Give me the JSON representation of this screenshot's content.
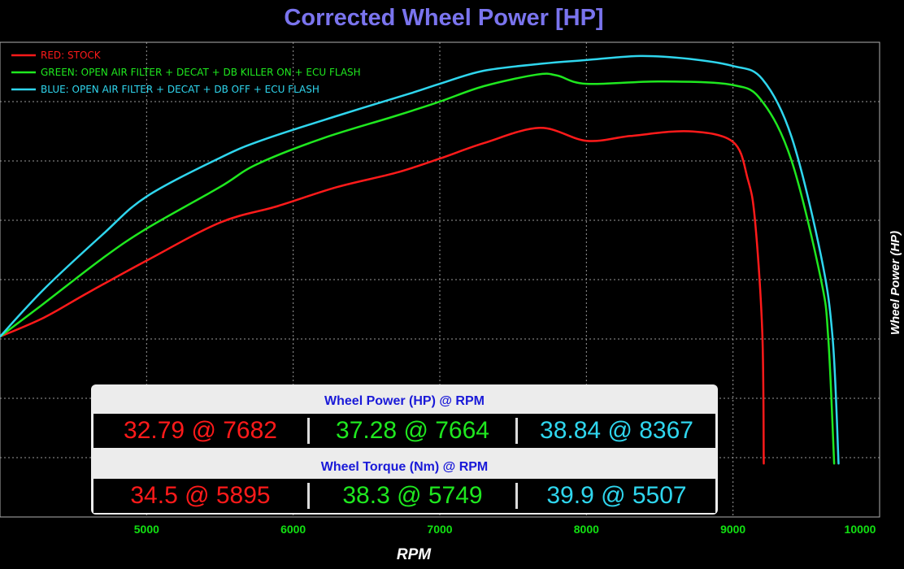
{
  "colors": {
    "red": "#ff1a1a",
    "green": "#1fe81f",
    "blue": "#2fd6ee",
    "title": "#7a74ee",
    "grid": "#9a9a9a",
    "tick": "#12e012"
  },
  "chart_data": {
    "type": "line",
    "title": "Corrected Wheel Power [HP]",
    "xlabel": "RPM",
    "ylabel": "Wheel Power (HP)",
    "xlim": [
      4000,
      10000
    ],
    "x_ticks": [
      5000,
      6000,
      7000,
      8000,
      9000,
      10000
    ],
    "grid": true,
    "legend_position": "top-left",
    "series": [
      {
        "name": "RED: STOCK",
        "color": "#ff1a1a",
        "points": [
          [
            4000,
            15.2
          ],
          [
            4300,
            16.8
          ],
          [
            4600,
            18.9
          ],
          [
            5000,
            21.6
          ],
          [
            5500,
            24.8
          ],
          [
            5895,
            26.2
          ],
          [
            6300,
            27.8
          ],
          [
            6700,
            29.0
          ],
          [
            7000,
            30.2
          ],
          [
            7300,
            31.5
          ],
          [
            7682,
            32.79
          ],
          [
            8000,
            31.7
          ],
          [
            8300,
            32.1
          ],
          [
            8700,
            32.5
          ],
          [
            9000,
            31.6
          ],
          [
            9100,
            28.5
          ],
          [
            9150,
            25.0
          ],
          [
            9200,
            15.5
          ],
          [
            9210,
            4.5
          ]
        ]
      },
      {
        "name": "GREEN: OPEN AIR FILTER + DECAT + DB KILLER ON + ECU FLASH",
        "color": "#1fe81f",
        "points": [
          [
            4000,
            15.2
          ],
          [
            4300,
            18.0
          ],
          [
            4700,
            21.8
          ],
          [
            5000,
            24.3
          ],
          [
            5500,
            27.8
          ],
          [
            5749,
            29.7
          ],
          [
            6200,
            31.9
          ],
          [
            6700,
            33.8
          ],
          [
            7000,
            35.0
          ],
          [
            7300,
            36.3
          ],
          [
            7664,
            37.28
          ],
          [
            7800,
            37.2
          ],
          [
            8000,
            36.5
          ],
          [
            8500,
            36.7
          ],
          [
            9000,
            36.4
          ],
          [
            9200,
            35.0
          ],
          [
            9400,
            30.0
          ],
          [
            9600,
            20.0
          ],
          [
            9650,
            15.0
          ],
          [
            9690,
            4.5
          ]
        ]
      },
      {
        "name": "BLUE: OPEN AIR FILTER + DECAT + DB OFF + ECU FLASH",
        "color": "#2fd6ee",
        "points": [
          [
            4000,
            15.2
          ],
          [
            4300,
            19.2
          ],
          [
            4700,
            23.8
          ],
          [
            5000,
            27.0
          ],
          [
            5507,
            30.3
          ],
          [
            5800,
            31.8
          ],
          [
            6300,
            33.8
          ],
          [
            6800,
            35.7
          ],
          [
            7000,
            36.5
          ],
          [
            7300,
            37.6
          ],
          [
            7700,
            38.2
          ],
          [
            8000,
            38.5
          ],
          [
            8367,
            38.84
          ],
          [
            8700,
            38.6
          ],
          [
            9000,
            38.0
          ],
          [
            9200,
            36.9
          ],
          [
            9400,
            32.0
          ],
          [
            9600,
            22.0
          ],
          [
            9680,
            15.0
          ],
          [
            9720,
            4.5
          ]
        ]
      }
    ]
  },
  "summary": {
    "power_header": "Wheel Power (HP) @ RPM",
    "torque_header": "Wheel Torque (Nm) @ RPM",
    "power_values": [
      "32.79 @ 7682",
      "37.28 @ 7664",
      "38.84 @ 8367"
    ],
    "torque_values": [
      "34.5 @ 5895",
      "38.3 @ 5749",
      "39.9 @ 5507"
    ]
  }
}
